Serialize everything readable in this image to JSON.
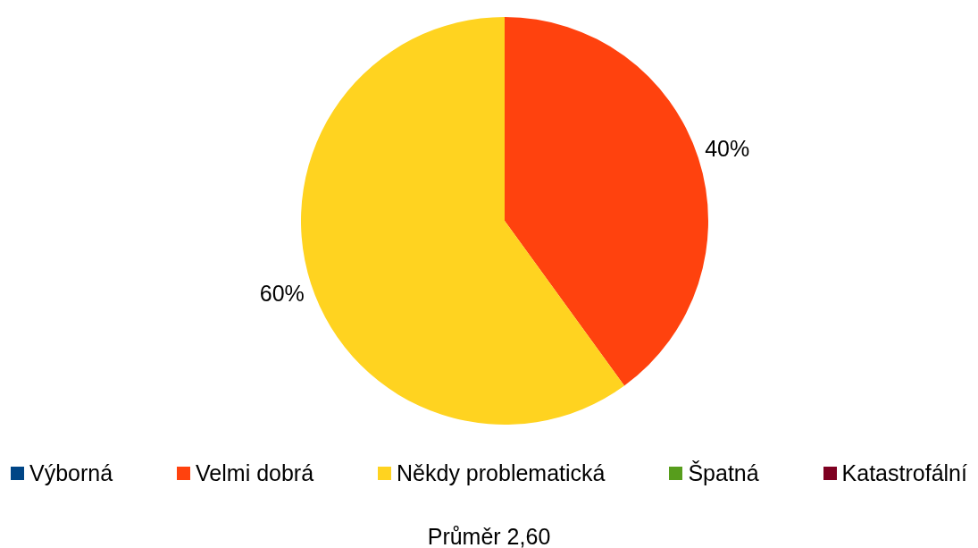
{
  "chart_data": {
    "type": "pie",
    "categories": [
      "Výborná",
      "Velmi dobrá",
      "Někdy problematická",
      "Špatná",
      "Katastrofální"
    ],
    "values": [
      0,
      40,
      60,
      0,
      0
    ],
    "colors": [
      "#004586",
      "#ff420e",
      "#ffd320",
      "#579d1c",
      "#7e0021"
    ],
    "value_labels": [
      null,
      "40%",
      "60%",
      null,
      null
    ],
    "legend": "bottom",
    "annotations": [
      "Průměr 2,60"
    ]
  }
}
